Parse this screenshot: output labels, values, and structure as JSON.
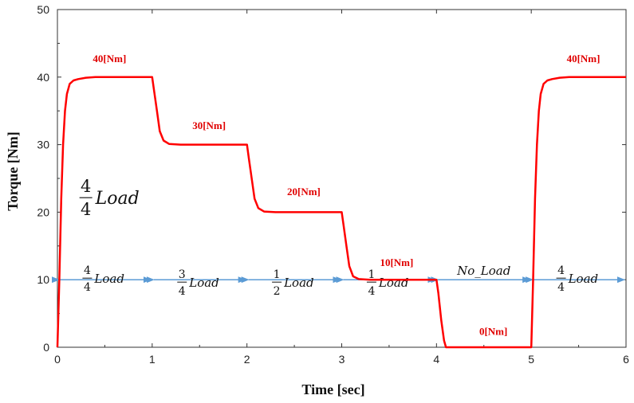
{
  "chart_data": {
    "type": "line",
    "xlabel": "Time [sec]",
    "ylabel": "Torque [Nm]",
    "xlim": [
      0,
      6
    ],
    "ylim": [
      0,
      50
    ],
    "x_ticks": [
      "0",
      "1",
      "2",
      "3",
      "4",
      "5",
      "6"
    ],
    "y_ticks": [
      "0",
      "10",
      "20",
      "30",
      "40",
      "50"
    ],
    "grid": false,
    "line_color": "#ff0000",
    "arrow_color": "#5b9bd5",
    "series": [
      {
        "x": [
          0.0,
          0.02,
          0.04,
          0.06,
          0.08,
          0.1,
          0.13,
          0.17,
          0.22,
          0.3,
          0.4,
          0.6,
          1.0,
          1.02,
          1.05,
          1.08,
          1.12,
          1.18,
          1.3,
          1.6,
          2.0,
          2.02,
          2.05,
          2.08,
          2.12,
          2.18,
          2.3,
          2.6,
          3.0,
          3.02,
          3.05,
          3.08,
          3.12,
          3.18,
          3.3,
          3.6,
          4.0,
          4.02,
          4.05,
          4.08,
          4.1,
          4.15,
          4.3,
          4.6,
          4.99,
          5.0,
          5.02,
          5.04,
          5.06,
          5.08,
          5.1,
          5.13,
          5.17,
          5.22,
          5.3,
          5.4,
          5.6,
          6.0
        ],
        "y": [
          0.0,
          10.0,
          22.0,
          30.0,
          35.0,
          37.5,
          39.0,
          39.5,
          39.7,
          39.9,
          40.0,
          40.0,
          40.0,
          38.0,
          35.0,
          32.0,
          30.6,
          30.1,
          30.0,
          30.0,
          30.0,
          28.0,
          25.0,
          22.0,
          20.6,
          20.1,
          20.0,
          20.0,
          20.0,
          18.0,
          15.0,
          12.0,
          10.5,
          10.1,
          10.0,
          10.0,
          10.0,
          8.0,
          4.0,
          1.0,
          0.0,
          0.0,
          0.0,
          0.0,
          0.0,
          0.0,
          10.0,
          22.0,
          30.0,
          35.0,
          37.5,
          39.0,
          39.5,
          39.7,
          39.9,
          40.0,
          40.0,
          40.0
        ]
      }
    ],
    "value_labels": [
      {
        "text": "40[Nm]",
        "x": 0.55,
        "y": 42.2
      },
      {
        "text": "30[Nm]",
        "x": 1.6,
        "y": 32.3
      },
      {
        "text": "20[Nm]",
        "x": 2.6,
        "y": 22.5
      },
      {
        "text": "10[Nm]",
        "x": 3.58,
        "y": 12.0
      },
      {
        "text": "0[Nm]",
        "x": 4.6,
        "y": 1.8
      },
      {
        "text": "40[Nm]",
        "x": 5.55,
        "y": 42.2
      }
    ],
    "segments": [
      {
        "start": 0,
        "end": 1,
        "num": "4",
        "den": "4",
        "label": "Load",
        "above": true
      },
      {
        "start": 1,
        "end": 2,
        "num": "3",
        "den": "4",
        "label": "Load",
        "above": false
      },
      {
        "start": 2,
        "end": 3,
        "num": "1",
        "den": "2",
        "label": "Load",
        "above": false
      },
      {
        "start": 3,
        "end": 4,
        "num": "1",
        "den": "4",
        "label": "Load",
        "above": false
      },
      {
        "start": 4,
        "end": 5,
        "num": "",
        "den": "",
        "label": "No_Load",
        "above": true
      },
      {
        "start": 5,
        "end": 6,
        "num": "4",
        "den": "4",
        "label": "Load",
        "above": true
      }
    ],
    "segment_y": 10,
    "annotation": {
      "num": "4",
      "den": "4",
      "label": "Load",
      "x": 0.3,
      "y": 22.5
    }
  }
}
